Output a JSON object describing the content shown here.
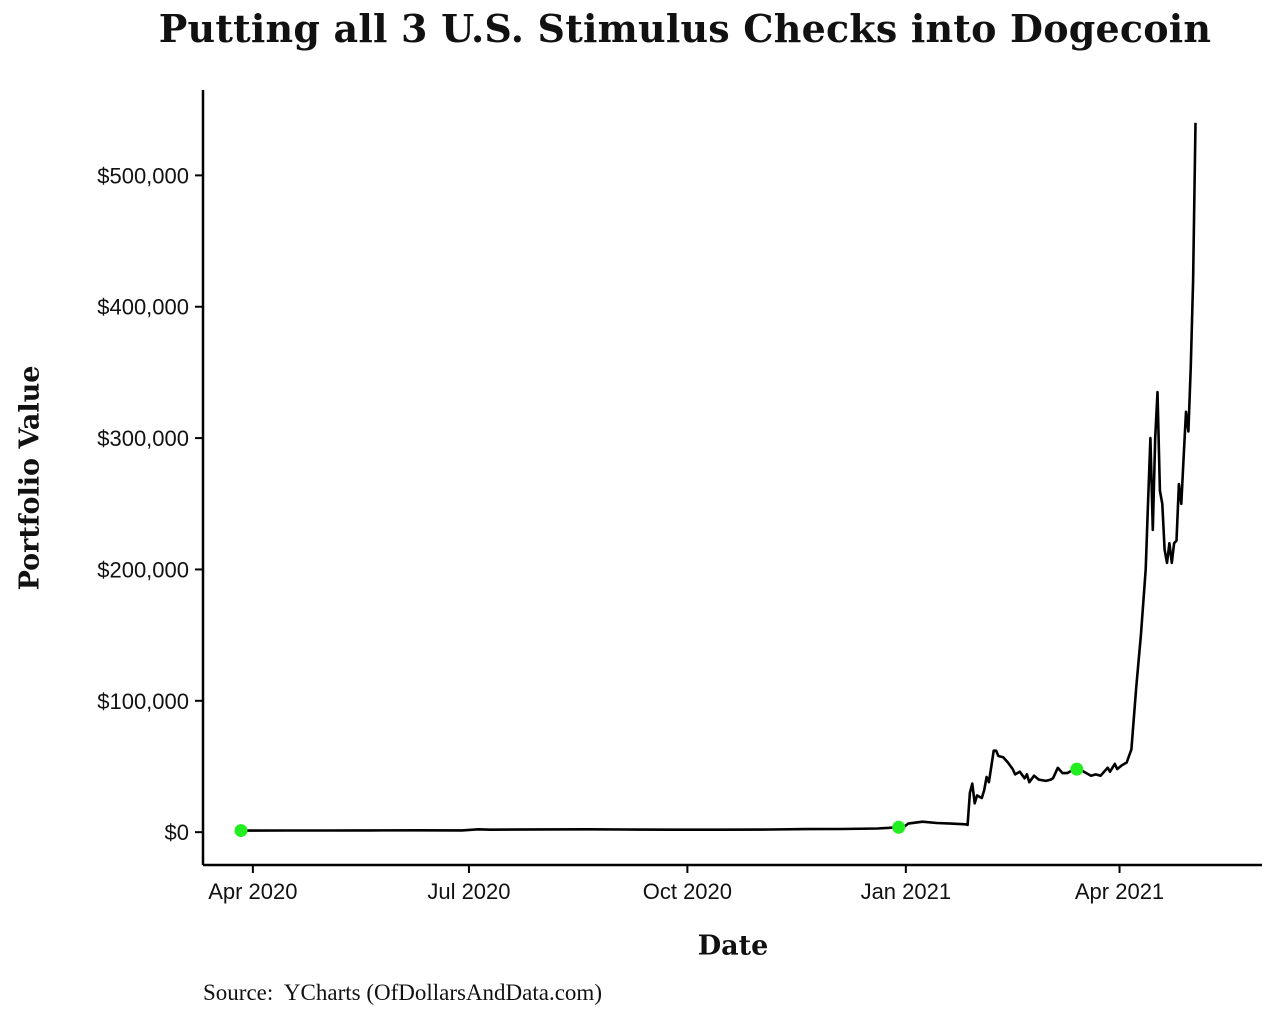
{
  "chart_data": {
    "type": "line",
    "title": "Putting all 3 U.S. Stimulus Checks into Dogecoin",
    "xlabel": "Date",
    "ylabel": "Portfolio Value",
    "source": "Source:  YCharts (OfDollarsAndData.com)",
    "x_ticks": [
      {
        "label": "Apr 2020",
        "date": "2020-04-01"
      },
      {
        "label": "Jul 2020",
        "date": "2020-07-01"
      },
      {
        "label": "Oct 2020",
        "date": "2020-10-01"
      },
      {
        "label": "Jan 2021",
        "date": "2021-01-01"
      },
      {
        "label": "Apr 2021",
        "date": "2021-04-01"
      }
    ],
    "y_ticks": [
      {
        "label": "$0",
        "value": 0
      },
      {
        "label": "$100,000",
        "value": 100000
      },
      {
        "label": "$200,000",
        "value": 200000
      },
      {
        "label": "$300,000",
        "value": 300000
      },
      {
        "label": "$400,000",
        "value": 400000
      },
      {
        "label": "$500,000",
        "value": 500000
      }
    ],
    "xlim": [
      "2020-03-11",
      "2021-05-31"
    ],
    "ylim": [
      -25000,
      565000
    ],
    "grid": false,
    "line_color": "#000000",
    "marker_color": "#22ee22",
    "series": [
      {
        "points": [
          [
            "2020-03-27",
            1200
          ],
          [
            "2020-04-15",
            1250
          ],
          [
            "2020-05-01",
            1300
          ],
          [
            "2020-05-20",
            1350
          ],
          [
            "2020-06-10",
            1400
          ],
          [
            "2020-06-28",
            1350
          ],
          [
            "2020-07-05",
            2200
          ],
          [
            "2020-07-10",
            1900
          ],
          [
            "2020-08-01",
            2100
          ],
          [
            "2020-08-20",
            2200
          ],
          [
            "2020-09-05",
            2000
          ],
          [
            "2020-09-25",
            1900
          ],
          [
            "2020-10-15",
            1900
          ],
          [
            "2020-11-05",
            2000
          ],
          [
            "2020-11-20",
            2300
          ],
          [
            "2020-12-05",
            2400
          ],
          [
            "2020-12-20",
            2800
          ],
          [
            "2020-12-29",
            3700
          ],
          [
            "2020-12-31",
            3800
          ],
          [
            "2021-01-02",
            6500
          ],
          [
            "2021-01-08",
            8000
          ],
          [
            "2021-01-14",
            7000
          ],
          [
            "2021-01-20",
            6500
          ],
          [
            "2021-01-26",
            6000
          ],
          [
            "2021-01-27",
            5500
          ],
          [
            "2021-01-28",
            30000
          ],
          [
            "2021-01-29",
            37000
          ],
          [
            "2021-01-30",
            22000
          ],
          [
            "2021-01-31",
            28000
          ],
          [
            "2021-02-01",
            27000
          ],
          [
            "2021-02-02",
            26000
          ],
          [
            "2021-02-03",
            32000
          ],
          [
            "2021-02-04",
            42000
          ],
          [
            "2021-02-05",
            38000
          ],
          [
            "2021-02-06",
            50000
          ],
          [
            "2021-02-07",
            62000
          ],
          [
            "2021-02-08",
            62000
          ],
          [
            "2021-02-09",
            58000
          ],
          [
            "2021-02-11",
            57000
          ],
          [
            "2021-02-13",
            53000
          ],
          [
            "2021-02-15",
            48000
          ],
          [
            "2021-02-16",
            44000
          ],
          [
            "2021-02-18",
            46000
          ],
          [
            "2021-02-20",
            41000
          ],
          [
            "2021-02-21",
            44000
          ],
          [
            "2021-02-22",
            38000
          ],
          [
            "2021-02-24",
            43000
          ],
          [
            "2021-02-26",
            40000
          ],
          [
            "2021-03-01",
            39000
          ],
          [
            "2021-03-03",
            40000
          ],
          [
            "2021-03-04",
            41000
          ],
          [
            "2021-03-06",
            49000
          ],
          [
            "2021-03-08",
            45000
          ],
          [
            "2021-03-10",
            45000
          ],
          [
            "2021-03-12",
            47000
          ],
          [
            "2021-03-14",
            48000
          ],
          [
            "2021-03-16",
            47000
          ],
          [
            "2021-03-18",
            45000
          ],
          [
            "2021-03-20",
            43000
          ],
          [
            "2021-03-22",
            44000
          ],
          [
            "2021-03-24",
            43000
          ],
          [
            "2021-03-26",
            47000
          ],
          [
            "2021-03-27",
            49000
          ],
          [
            "2021-03-28",
            46000
          ],
          [
            "2021-03-30",
            52000
          ],
          [
            "2021-03-31",
            48000
          ],
          [
            "2021-04-02",
            51000
          ],
          [
            "2021-04-04",
            53000
          ],
          [
            "2021-04-05",
            58000
          ],
          [
            "2021-04-06",
            63000
          ],
          [
            "2021-04-08",
            110000
          ],
          [
            "2021-04-10",
            150000
          ],
          [
            "2021-04-12",
            200000
          ],
          [
            "2021-04-13",
            250000
          ],
          [
            "2021-04-14",
            300000
          ],
          [
            "2021-04-15",
            230000
          ],
          [
            "2021-04-16",
            300000
          ],
          [
            "2021-04-17",
            335000
          ],
          [
            "2021-04-18",
            260000
          ],
          [
            "2021-04-19",
            250000
          ],
          [
            "2021-04-20",
            215000
          ],
          [
            "2021-04-21",
            205000
          ],
          [
            "2021-04-22",
            220000
          ],
          [
            "2021-04-23",
            205000
          ],
          [
            "2021-04-24",
            220000
          ],
          [
            "2021-04-25",
            222000
          ],
          [
            "2021-04-26",
            265000
          ],
          [
            "2021-04-27",
            250000
          ],
          [
            "2021-04-28",
            285000
          ],
          [
            "2021-04-29",
            320000
          ],
          [
            "2021-04-30",
            305000
          ],
          [
            "2021-05-01",
            355000
          ],
          [
            "2021-05-02",
            420000
          ],
          [
            "2021-05-03",
            540000
          ]
        ]
      }
    ],
    "markers": [
      {
        "date": "2020-03-27",
        "value": 1200
      },
      {
        "date": "2020-12-29",
        "value": 3700
      },
      {
        "date": "2021-03-14",
        "value": 48000
      }
    ]
  }
}
